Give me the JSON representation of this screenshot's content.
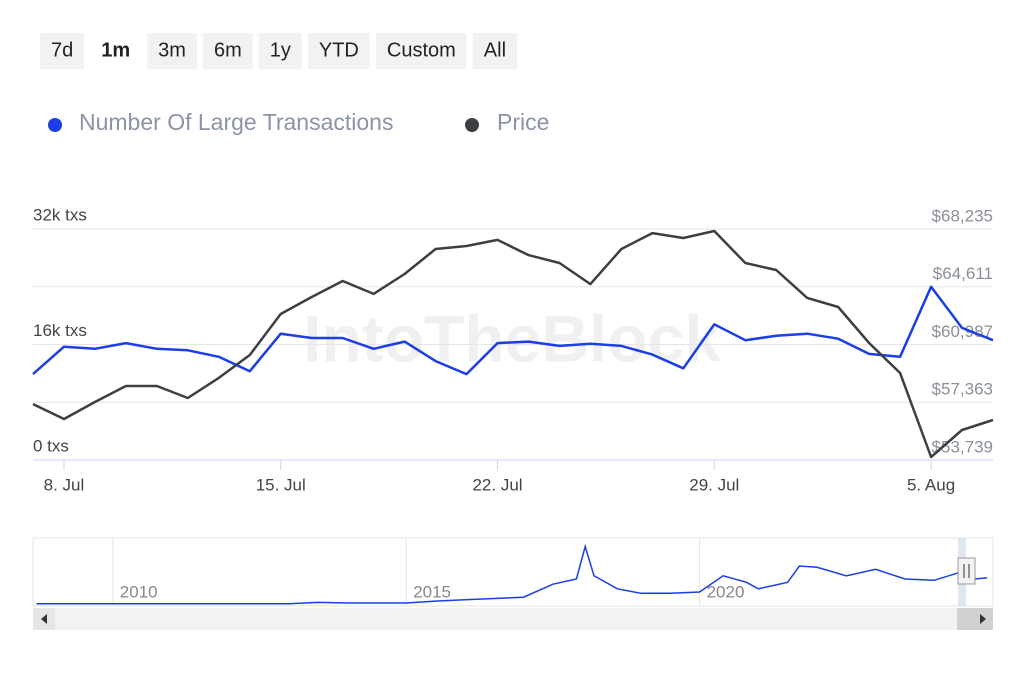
{
  "range_buttons": [
    "7d",
    "1m",
    "3m",
    "6m",
    "1y",
    "YTD",
    "Custom",
    "All"
  ],
  "selected_button": 1,
  "watermark": "IntoTheBlock",
  "chart_data": {
    "type": "line",
    "categories": [
      null,
      "8. Jul",
      null,
      null,
      null,
      null,
      null,
      null,
      "15. Jul",
      null,
      null,
      null,
      null,
      null,
      null,
      "22. Jul",
      null,
      null,
      null,
      null,
      null,
      null,
      "29. Jul",
      null,
      null,
      null,
      null,
      null,
      null,
      "5. Aug",
      null,
      null
    ],
    "series": [
      {
        "name": "Number Of Large Transactions",
        "color": "#1b3ee6",
        "axis": "y",
        "values": [
          11900,
          15700,
          15400,
          16200,
          15400,
          15200,
          14300,
          12300,
          17500,
          16900,
          16900,
          15400,
          16400,
          13700,
          11900,
          16200,
          16400,
          15800,
          16100,
          15800,
          14600,
          12700,
          18800,
          16600,
          17200,
          17500,
          16800,
          14700,
          14300,
          24000,
          18300,
          16600
        ]
      },
      {
        "name": "Price",
        "color": "#3c4045",
        "axis": "y2",
        "values": [
          57250,
          56310,
          57380,
          58380,
          58380,
          57630,
          58890,
          60330,
          62900,
          63970,
          64970,
          64160,
          65410,
          66980,
          67170,
          67550,
          66600,
          66100,
          64780,
          66980,
          67980,
          67670,
          68110,
          66100,
          65660,
          63910,
          63340,
          61080,
          59200,
          53930,
          55620,
          56250
        ]
      }
    ],
    "ylim": [
      0,
      32000
    ],
    "yticks": [
      {
        "value": 0,
        "label": "0 txs"
      },
      {
        "value": 16000,
        "label": "16k txs"
      },
      {
        "value": 32000,
        "label": "32k txs"
      }
    ],
    "y2lim": [
      53739,
      68235
    ],
    "y2ticks": [
      {
        "value": 53739,
        "label": "$53,739"
      },
      {
        "value": 57363,
        "label": "$57,363"
      },
      {
        "value": 60987,
        "label": "$60,987"
      },
      {
        "value": 64611,
        "label": "$64,611"
      },
      {
        "value": 68235,
        "label": "$68,235"
      }
    ],
    "grid": true,
    "navigator": {
      "type": "line",
      "color": "#1b3ee6",
      "xlim": [
        2008.64,
        2025
      ],
      "ylim": [
        0,
        100
      ],
      "xticks": [
        2010,
        2015,
        2020
      ],
      "x": [
        2008.7,
        2013.0,
        2013.5,
        2014.0,
        2015.0,
        2015.5,
        2016.0,
        2016.5,
        2017.0,
        2017.5,
        2017.9,
        2018.05,
        2018.2,
        2018.6,
        2019.0,
        2019.5,
        2020.0,
        2020.4,
        2020.8,
        2021.0,
        2021.5,
        2021.7,
        2022.0,
        2022.5,
        2023.0,
        2023.5,
        2024.0,
        2024.6,
        2024.7,
        2024.9
      ],
      "values": [
        2,
        2,
        4,
        3,
        3,
        6,
        8,
        10,
        12,
        32,
        40,
        90,
        45,
        25,
        18,
        18,
        20,
        45,
        35,
        25,
        35,
        60,
        58,
        45,
        55,
        40,
        38,
        55,
        40,
        42
      ]
    }
  }
}
